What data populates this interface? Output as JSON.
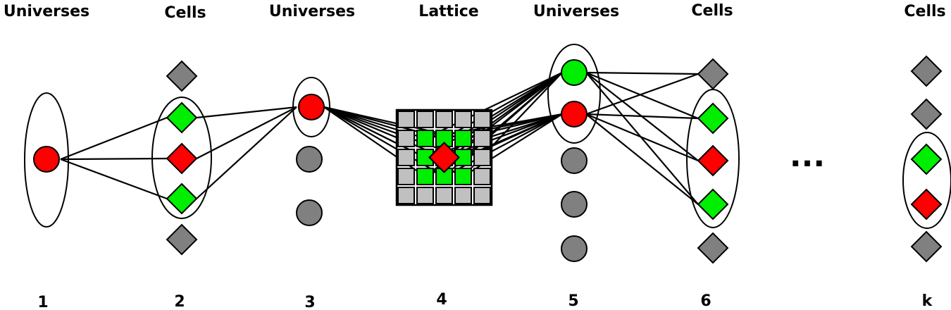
{
  "headers": [
    "Universes",
    "Cells",
    "Universes",
    "Lattice",
    "Universes",
    "Cells",
    "Cells"
  ],
  "indices": [
    "1",
    "2",
    "3",
    "4",
    "5",
    "6",
    "k"
  ],
  "ellipsis": "...",
  "colors": {
    "red": "#ff0000",
    "green": "#00ee00",
    "gray": "#808080",
    "lattice_outer": "#c0c0c0",
    "lattice_inner": "#00ee00"
  },
  "legend_meaning": {
    "circle": "universe",
    "diamond": "cell",
    "grid": "lattice"
  }
}
